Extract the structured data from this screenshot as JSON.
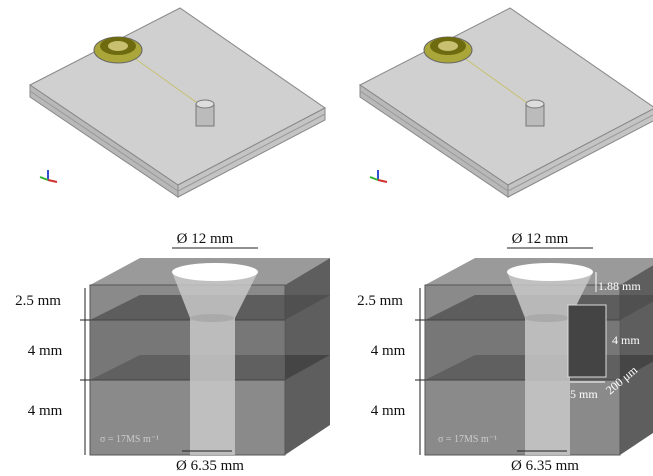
{
  "bottom_left": {
    "top_diameter": "Ø 12 mm",
    "layer_1": "2.5 mm",
    "layer_2": "4 mm",
    "layer_3": "4 mm",
    "bottom_diameter": "Ø 6.35 mm",
    "conductivity": "σ = 17MS m⁻¹"
  },
  "bottom_right": {
    "top_diameter": "Ø 12 mm",
    "flare_depth": "1.88 mm",
    "layer_1": "2.5 mm",
    "layer_2": "4 mm",
    "layer_3": "4 mm",
    "slot_height": "4 mm",
    "slot_width": "200 μm",
    "slot_length": "5 mm",
    "bottom_diameter": "Ø 6.35 mm",
    "conductivity": "σ = 17MS m⁻¹"
  }
}
